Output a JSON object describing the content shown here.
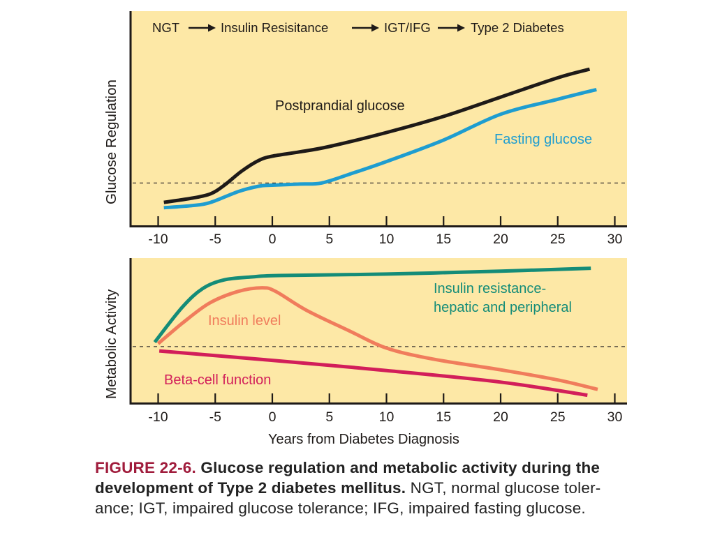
{
  "chart_data": [
    {
      "type": "line",
      "title": "NGT → Insulin Resisitance → IGT/IFG → Type 2 Diabetes",
      "title_parts": [
        "NGT",
        "Insulin Resisitance",
        "IGT/IFG",
        "Type 2 Diabetes"
      ],
      "xlabel": "",
      "ylabel": "Glucose Regulation",
      "xlim": [
        -12.3,
        31
      ],
      "ylim": [
        0,
        100
      ],
      "xticks": [
        -10,
        -5,
        0,
        5,
        10,
        15,
        20,
        25,
        30
      ],
      "xtick_labels": [
        "-10",
        "-5",
        "0",
        "5",
        "10",
        "15",
        "20",
        "25",
        "30"
      ],
      "grid": false,
      "threshold": {
        "value": 20,
        "style": "dashed"
      },
      "series": [
        {
          "name": "Postprandial glucose",
          "color": "#1e1a18",
          "x": [
            -9.5,
            -7,
            -5.4,
            -4.2,
            -2.7,
            -1.2,
            0,
            2.4,
            5,
            10,
            15,
            20,
            25,
            27.8
          ],
          "y": [
            11,
            13,
            15,
            19,
            25.5,
            30.5,
            32.5,
            34.5,
            37,
            43.5,
            51,
            60,
            69,
            73
          ]
        },
        {
          "name": "Fasting glucose",
          "color": "#1e9dd0",
          "x": [
            -9.5,
            -7,
            -5.4,
            -3,
            -1.2,
            0,
            2.4,
            4.3,
            6.7,
            10,
            15,
            20,
            25,
            28.4
          ],
          "y": [
            8.5,
            9.5,
            11,
            16,
            18.5,
            19,
            19.5,
            20,
            24,
            30,
            40,
            52,
            59,
            63.5
          ]
        }
      ],
      "annotations": [
        {
          "text": "Postprandial glucose",
          "color": "#1e1a18"
        },
        {
          "text": "Fasting glucose",
          "color": "#1e9dd0"
        }
      ]
    },
    {
      "type": "line",
      "title": "",
      "xlabel": "Years from Diabetes Diagnosis",
      "ylabel": "Metabolic Activity",
      "xlim": [
        -12.3,
        31
      ],
      "ylim": [
        0,
        100
      ],
      "xticks": [
        -10,
        -5,
        0,
        5,
        10,
        15,
        20,
        25,
        30
      ],
      "xtick_labels": [
        "-10",
        "-5",
        "0",
        "5",
        "10",
        "15",
        "20",
        "25",
        "30"
      ],
      "grid": false,
      "threshold": {
        "value": 39,
        "style": "dashed"
      },
      "series": [
        {
          "name": "Insulin resistance-hepatic and peripheral",
          "color": "#148c78",
          "x": [
            -10.3,
            -7.9,
            -6.1,
            -4.2,
            -1.8,
            0.6,
            10,
            20,
            27.9
          ],
          "y": [
            42,
            66,
            79,
            85,
            87,
            88,
            89,
            91,
            93
          ]
        },
        {
          "name": "Insulin level",
          "color": "#f07c5c",
          "x": [
            -10,
            -7.9,
            -5.5,
            -3,
            -0.9,
            0.3,
            3,
            6.7,
            10,
            14,
            20,
            25,
            28.5
          ],
          "y": [
            41,
            55,
            69,
            77,
            79.5,
            77,
            64,
            50,
            38,
            30.5,
            23,
            16,
            9.5
          ]
        },
        {
          "name": "Beta-cell function",
          "color": "#d21e5a",
          "x": [
            -9.9,
            0,
            10,
            20,
            27.6
          ],
          "y": [
            36,
            29.5,
            22.5,
            14.5,
            5.5
          ]
        }
      ],
      "annotations": [
        {
          "text": "Insulin resistance-",
          "color": "#148c78"
        },
        {
          "text": "hepatic and peripheral",
          "color": "#148c78"
        },
        {
          "text": "Insulin level",
          "color": "#f07c5c"
        },
        {
          "text": "Beta-cell function",
          "color": "#d21e5a"
        }
      ]
    }
  ],
  "caption": {
    "figure_number": "FIGURE 22-6.",
    "line1_bold": "Glucose regulation and metabolic activity during the",
    "line2_bold": "development of Type 2 diabetes mellitus.",
    "line2_rest": " NGT, normal glucose toler-",
    "line3": "ance; IGT, impaired glucose tolerance; IFG, impaired fasting glucose."
  },
  "colors": {
    "panel_background": "#fde8a6",
    "axis": "#1e1a18",
    "figure_number": "#a01c3c"
  }
}
